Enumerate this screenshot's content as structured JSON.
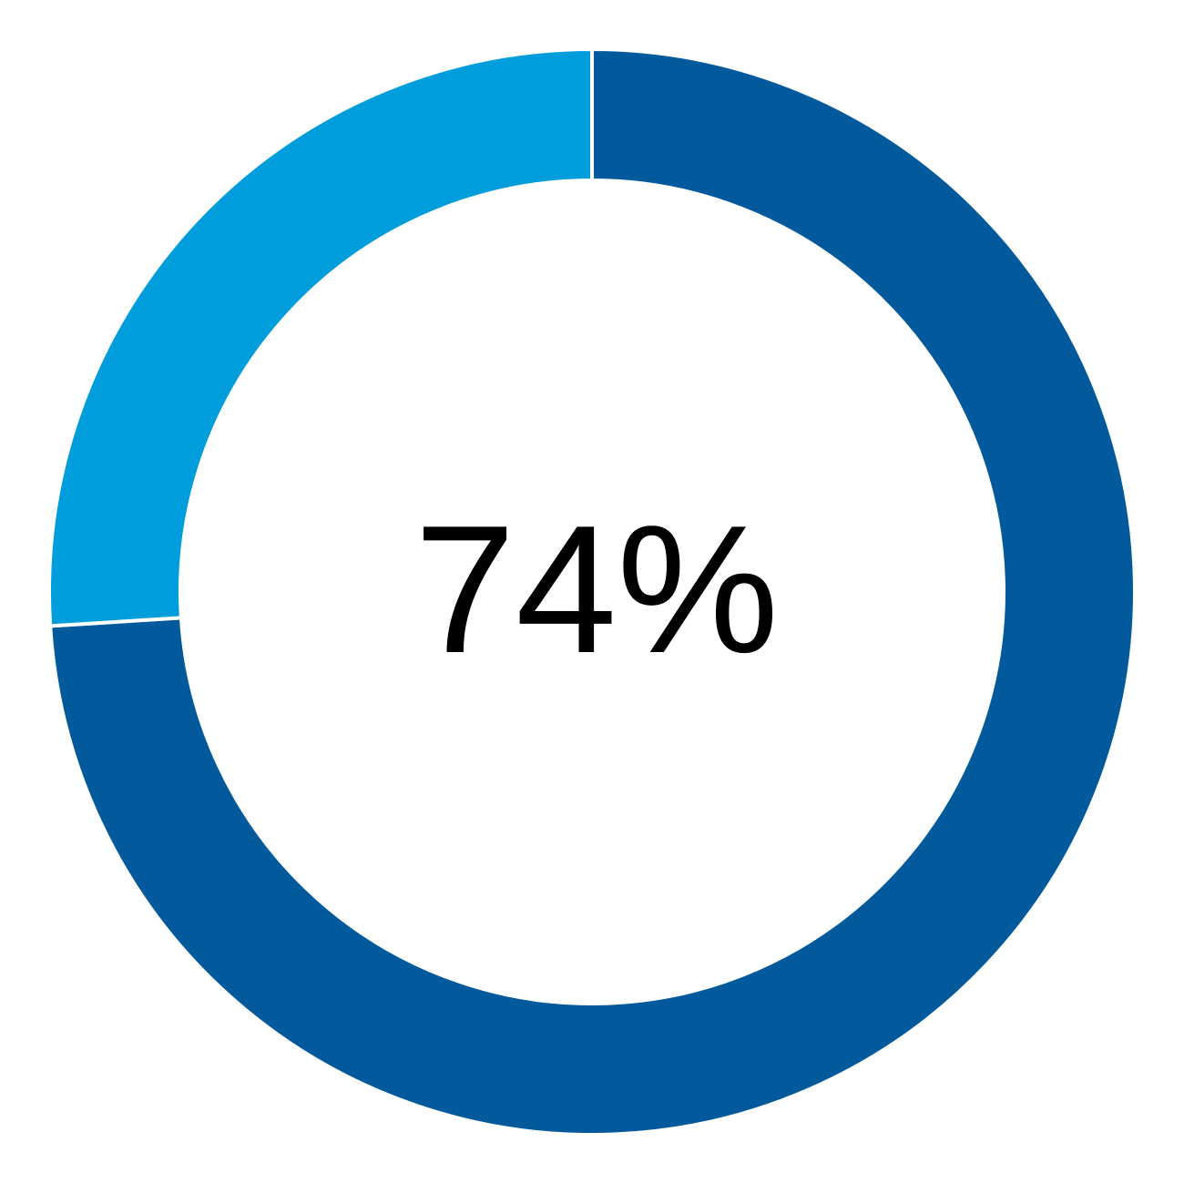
{
  "chart_data": {
    "type": "pie",
    "variant": "donut",
    "title": "",
    "center_label": "74%",
    "start": "top",
    "direction": "clockwise",
    "slices": [
      {
        "value": 74,
        "color": "#025a9c"
      },
      {
        "value": 26,
        "color": "#009ddc"
      }
    ],
    "legend": "none"
  }
}
